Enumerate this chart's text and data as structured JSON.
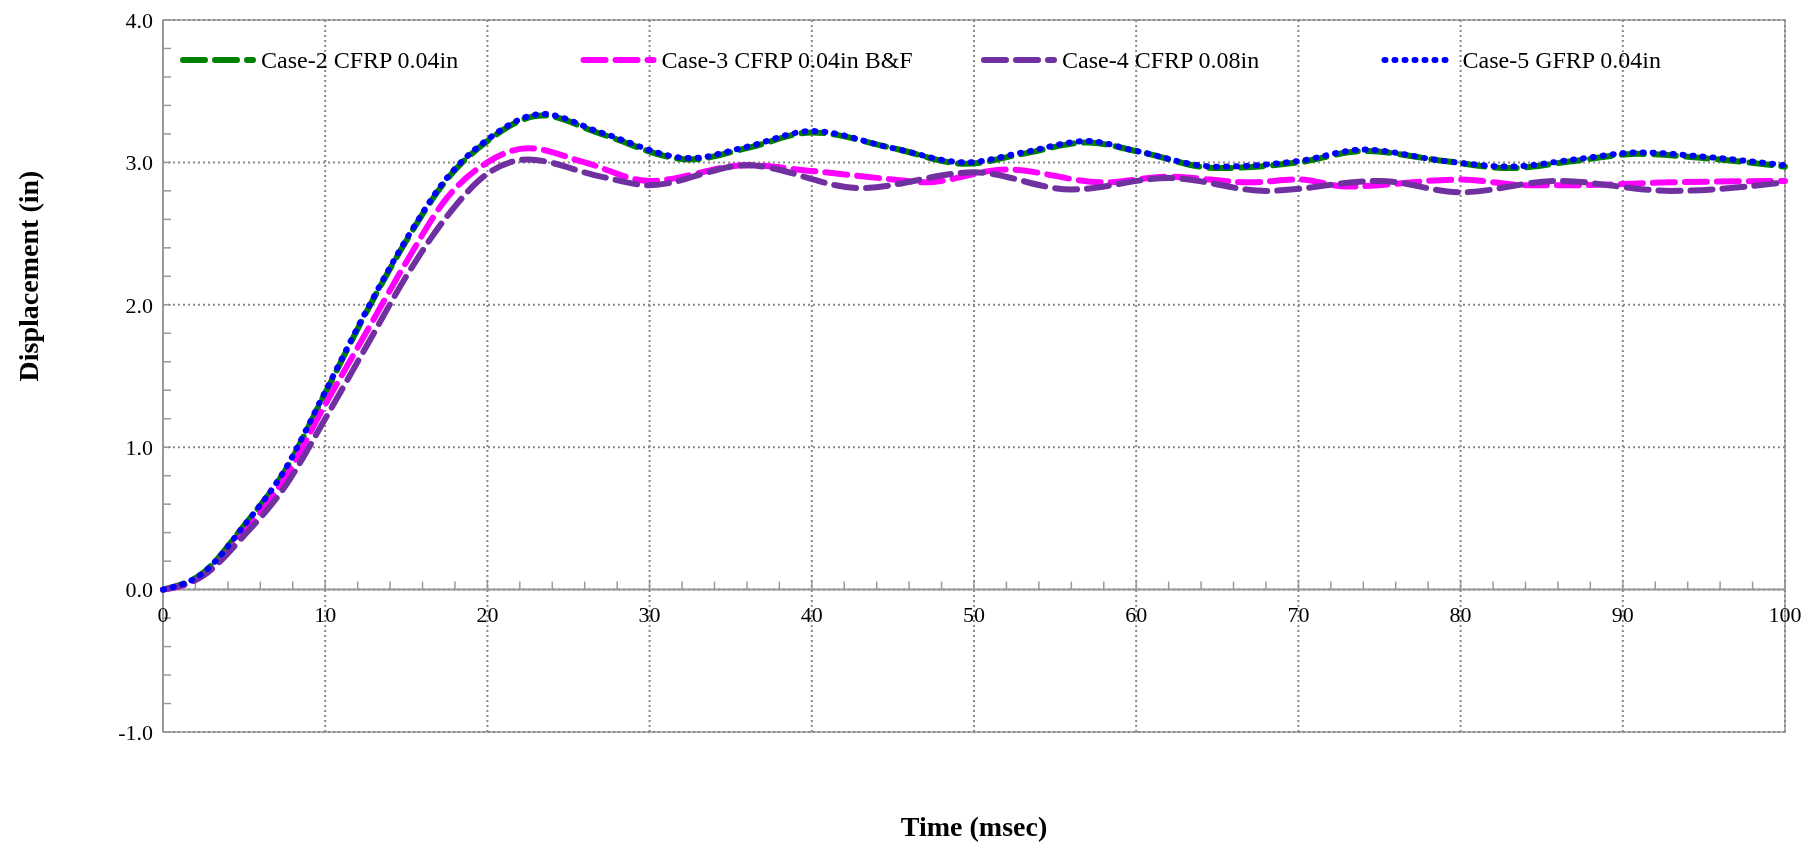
{
  "chart_data": {
    "type": "line",
    "xlabel": "Time (msec)",
    "ylabel": "Displacement (in)",
    "xlim": [
      0,
      100
    ],
    "xticks": [
      0,
      10,
      20,
      30,
      40,
      50,
      60,
      70,
      80,
      90,
      100
    ],
    "ylim": [
      -1,
      4
    ],
    "yticks": [
      {
        "value": -1,
        "label": "-1.0"
      },
      {
        "value": 0,
        "label": "0.0"
      },
      {
        "value": 1,
        "label": "1.0"
      },
      {
        "value": 2,
        "label": "2.0"
      },
      {
        "value": 3,
        "label": "3.0"
      },
      {
        "value": 4,
        "label": "4.0"
      }
    ],
    "grid": true,
    "legend": "top",
    "marker": "none",
    "series": [
      {
        "name": "Case-2 CFRP 0.04in",
        "color": "#008000",
        "line_style": "dashed",
        "x": [
          0,
          2.5,
          5,
          7.5,
          10,
          12.5,
          15,
          17.5,
          20,
          23.4,
          27,
          32.5,
          36,
          40,
          45,
          49.5,
          53,
          57,
          60,
          65,
          70,
          74,
          79,
          83,
          87,
          91,
          95,
          100
        ],
        "values": [
          0,
          0.12,
          0.45,
          0.83,
          1.38,
          1.94,
          2.45,
          2.88,
          3.15,
          3.33,
          3.2,
          3.02,
          3.1,
          3.21,
          3.1,
          2.99,
          3.06,
          3.14,
          3.08,
          2.96,
          3.0,
          3.08,
          3.01,
          2.96,
          3.01,
          3.06,
          3.03,
          2.97
        ]
      },
      {
        "name": "Case-3 CFRP 0.04in B&F",
        "color": "#ff00ff",
        "line_style": "dashed",
        "x": [
          0,
          2.5,
          5,
          7.5,
          10,
          12.5,
          15,
          17.5,
          20,
          22.5,
          26,
          30,
          36,
          40,
          45,
          47,
          52,
          58,
          62,
          67,
          70,
          73,
          80,
          84,
          87,
          93,
          100
        ],
        "values": [
          0,
          0.1,
          0.4,
          0.78,
          1.3,
          1.8,
          2.3,
          2.75,
          3.0,
          3.1,
          3.0,
          2.87,
          2.98,
          2.94,
          2.88,
          2.86,
          2.95,
          2.86,
          2.9,
          2.86,
          2.88,
          2.83,
          2.88,
          2.84,
          2.84,
          2.86,
          2.87
        ]
      },
      {
        "name": "Case-4 CFRP 0.08in",
        "color": "#7030a0",
        "line_style": "dashed",
        "x": [
          0,
          2.5,
          5,
          7.5,
          10,
          12.5,
          15,
          17.5,
          20,
          22.5,
          27,
          30,
          36,
          43,
          50,
          56,
          62,
          68,
          75,
          80,
          86,
          93,
          100
        ],
        "values": [
          0,
          0.1,
          0.38,
          0.72,
          1.2,
          1.7,
          2.2,
          2.62,
          2.92,
          3.02,
          2.9,
          2.84,
          2.98,
          2.82,
          2.93,
          2.81,
          2.89,
          2.8,
          2.87,
          2.79,
          2.87,
          2.8,
          2.86
        ]
      },
      {
        "name": "Case-5 GFRP 0.04in",
        "color": "#0000ff",
        "line_style": "dotted",
        "x": [
          0,
          2.5,
          5,
          7.5,
          10,
          12.5,
          15,
          17.5,
          20,
          23.4,
          27,
          32.5,
          36,
          40,
          45,
          49.5,
          53,
          57,
          60,
          65,
          70,
          74,
          79,
          83,
          87,
          91,
          95,
          100
        ],
        "values": [
          0,
          0.12,
          0.45,
          0.84,
          1.39,
          1.95,
          2.46,
          2.89,
          3.16,
          3.34,
          3.21,
          3.03,
          3.11,
          3.22,
          3.1,
          3.0,
          3.07,
          3.15,
          3.08,
          2.97,
          3.01,
          3.09,
          3.01,
          2.97,
          3.02,
          3.07,
          3.04,
          2.98
        ]
      }
    ]
  }
}
